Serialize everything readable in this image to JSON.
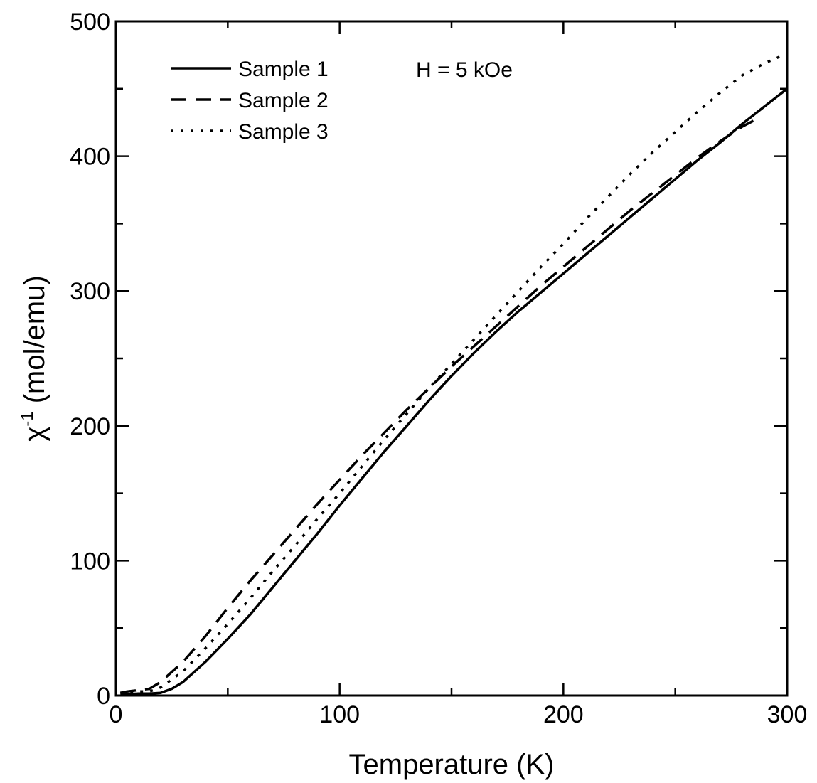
{
  "chart_data": {
    "type": "line",
    "title": "",
    "xlabel": "Temperature (K)",
    "ylabel_main": "χ",
    "ylabel_sup": "-1",
    "ylabel_unit": " (mol/emu)",
    "xlim": [
      0,
      300
    ],
    "ylim": [
      0,
      500
    ],
    "xticks": [
      "0",
      "100",
      "200",
      "300"
    ],
    "yticks": [
      "0",
      "100",
      "200",
      "300",
      "400",
      "500"
    ],
    "grid": false,
    "legend_position": "top-left",
    "annotation": "H = 5 kOe",
    "series": [
      {
        "name": "Sample 1",
        "style": "solid",
        "x": [
          2,
          5,
          10,
          15,
          20,
          25,
          30,
          40,
          50,
          60,
          70,
          80,
          90,
          100,
          110,
          120,
          130,
          140,
          150,
          160,
          170,
          180,
          190,
          200,
          210,
          220,
          230,
          240,
          250,
          260,
          270,
          280,
          290,
          300
        ],
        "y": [
          1,
          1,
          1.5,
          1.5,
          2,
          5,
          10,
          25,
          42,
          60,
          80,
          100,
          120,
          141,
          161,
          181,
          200,
          219,
          237,
          254,
          270,
          285,
          299,
          313,
          327,
          341,
          355,
          369,
          383,
          397,
          410,
          424,
          437,
          450
        ]
      },
      {
        "name": "Sample 2",
        "style": "dashed",
        "x": [
          2,
          5,
          10,
          15,
          20,
          30,
          40,
          50,
          60,
          70,
          80,
          90,
          100,
          110,
          120,
          130,
          140,
          150,
          160,
          170,
          180,
          190,
          200,
          210,
          220,
          230,
          240,
          250,
          260,
          270,
          280,
          287
        ],
        "y": [
          2,
          3,
          4,
          5,
          10,
          25,
          44,
          65,
          85,
          104,
          123,
          142,
          160,
          178,
          195,
          212,
          228,
          244,
          259,
          274,
          289,
          304,
          318,
          332,
          346,
          360,
          373,
          386,
          399,
          411,
          422,
          428
        ]
      },
      {
        "name": "Sample 3",
        "style": "dotted",
        "x": [
          2,
          5,
          10,
          15,
          20,
          30,
          40,
          50,
          60,
          70,
          80,
          90,
          100,
          110,
          120,
          130,
          140,
          150,
          160,
          170,
          180,
          190,
          200,
          210,
          220,
          230,
          240,
          250,
          260,
          270,
          280,
          290,
          297
        ],
        "y": [
          2,
          2,
          3,
          3,
          6,
          18,
          35,
          53,
          72,
          92,
          111,
          131,
          150,
          170,
          190,
          209,
          228,
          246,
          264,
          282,
          300,
          318,
          335,
          353,
          370,
          387,
          403,
          418,
          433,
          447,
          460,
          469,
          474
        ]
      }
    ]
  }
}
